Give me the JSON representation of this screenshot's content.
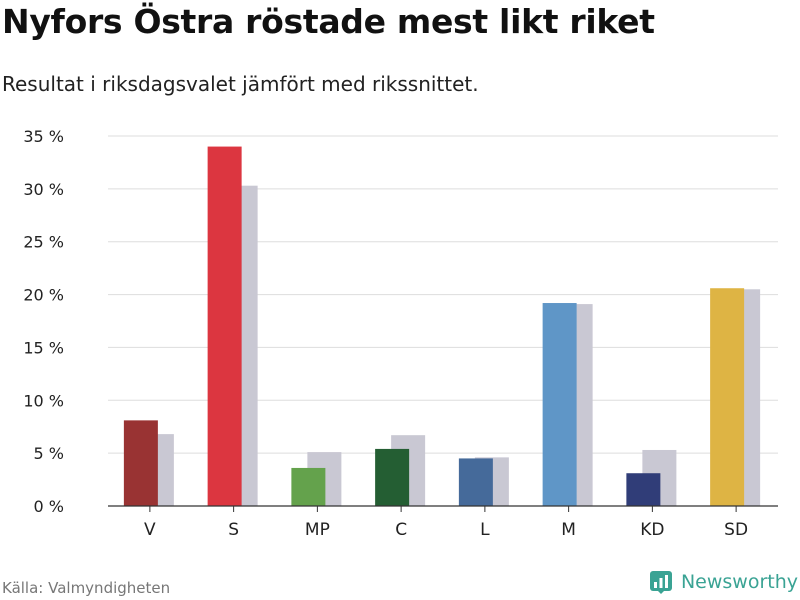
{
  "title": "Nyfors Östra röstade mest likt riket",
  "subtitle": "Resultat i riksdagsvalet jämfört med rikssnittet.",
  "source": "Källa: Valmyndigheten",
  "brand": {
    "name": "Newsworthy",
    "icon": "newsworthy-logo-icon",
    "color": "#3aa394"
  },
  "chart_data": {
    "type": "bar",
    "categories": [
      "V",
      "S",
      "MP",
      "C",
      "L",
      "M",
      "KD",
      "SD"
    ],
    "series": [
      {
        "values": [
          8.1,
          34.0,
          3.6,
          5.4,
          4.5,
          19.2,
          3.1,
          20.6
        ],
        "colors": [
          "#993333",
          "#dc3640",
          "#64a24c",
          "#245e33",
          "#456a9a",
          "#5f96c7",
          "#303d78",
          "#deb444"
        ]
      },
      {
        "values": [
          6.8,
          30.3,
          5.1,
          6.7,
          4.6,
          19.1,
          5.3,
          20.5
        ],
        "color": "#c9c8d3"
      }
    ],
    "yticks": [
      "0 %",
      "5 %",
      "10 %",
      "15 %",
      "20 %",
      "25 %",
      "30 %",
      "35 %"
    ],
    "ylim": [
      0,
      35
    ],
    "grid": true
  }
}
